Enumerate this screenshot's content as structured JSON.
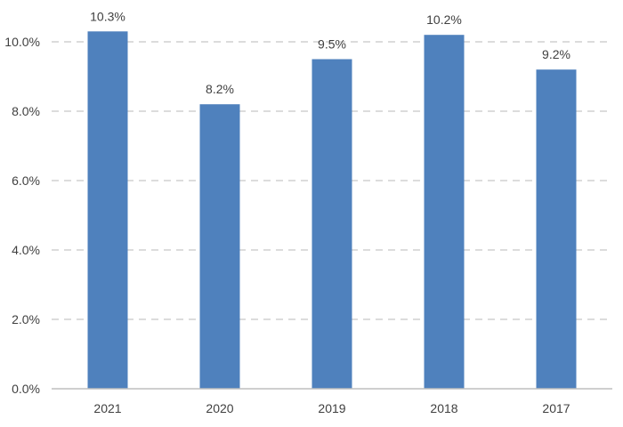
{
  "chart_data": {
    "type": "bar",
    "title": "",
    "xlabel": "",
    "ylabel": "",
    "categories": [
      "2021",
      "2020",
      "2019",
      "2018",
      "2017"
    ],
    "values": [
      10.3,
      8.2,
      9.5,
      10.2,
      9.2
    ],
    "data_labels": [
      "10.3%",
      "8.2%",
      "9.5%",
      "10.2%",
      "9.2%"
    ],
    "ylim": [
      0,
      10
    ],
    "yticks": [
      0,
      2,
      4,
      6,
      8,
      10
    ],
    "ytick_labels": [
      "0.0%",
      "2.0%",
      "4.0%",
      "6.0%",
      "8.0%",
      "10.0%"
    ],
    "grid": true,
    "legend": "none",
    "bar_color": "#4f81bd"
  }
}
